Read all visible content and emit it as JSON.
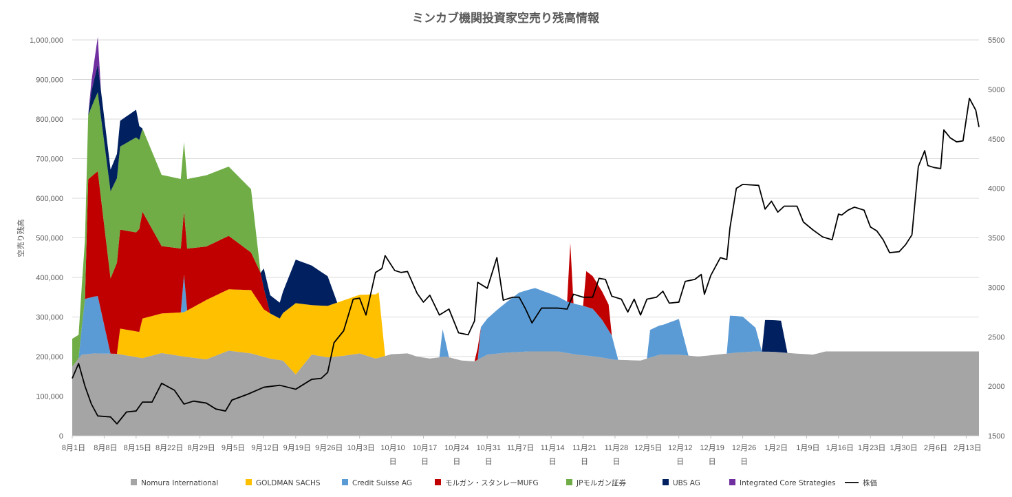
{
  "chart_data": {
    "type": "area",
    "title": "ミンカブ機関投資家空売り残高情報",
    "ylabel": "空売り残高",
    "ylim": [
      0,
      1000000
    ],
    "y_ticks": [
      "0",
      "100,000",
      "200,000",
      "300,000",
      "400,000",
      "500,000",
      "600,000",
      "700,000",
      "800,000",
      "900,000",
      "1,000,000"
    ],
    "y2lim": [
      1500,
      5500
    ],
    "y2_ticks": [
      "1500",
      "2000",
      "2500",
      "3000",
      "3500",
      "4000",
      "4500",
      "5000",
      "5500"
    ],
    "x_tick_labels": [
      "8月1日",
      "8月8日",
      "8月15日",
      "8月22日",
      "8月29日",
      "9月5日",
      "9月12日",
      "9月19日",
      "9月26日",
      "10月3日",
      "10月10日",
      "10月17日",
      "10月24日",
      "10月31日",
      "11月7日",
      "11月14日",
      "11月21日",
      "11月28日",
      "12月5日",
      "12月12日",
      "12月19日",
      "12月26日",
      "1月2日",
      "1月9日",
      "1月16日",
      "1月23日",
      "1月30日",
      "2月6日",
      "2月13日"
    ],
    "grid": true,
    "stacked": true,
    "legend_position": "bottom",
    "series": [
      {
        "name": "Nomura International",
        "color": "#a5a5a5",
        "points": [
          [
            0,
            175000
          ],
          [
            3,
            205000
          ],
          [
            7,
            208000
          ],
          [
            14,
            207000
          ],
          [
            22,
            196000
          ],
          [
            28,
            209000
          ],
          [
            35,
            200000
          ],
          [
            42,
            193000
          ],
          [
            49,
            215000
          ],
          [
            56,
            208000
          ],
          [
            62,
            195000
          ],
          [
            66,
            190000
          ],
          [
            70,
            155000
          ],
          [
            75,
            205000
          ],
          [
            80,
            198000
          ],
          [
            85,
            202000
          ],
          [
            90,
            208000
          ],
          [
            95,
            195000
          ],
          [
            100,
            206000
          ],
          [
            105,
            208000
          ],
          [
            108,
            200000
          ],
          [
            112,
            195000
          ],
          [
            117,
            200000
          ],
          [
            122,
            190000
          ],
          [
            126,
            188000
          ],
          [
            130,
            205000
          ],
          [
            136,
            210000
          ],
          [
            143,
            213000
          ],
          [
            152,
            213000
          ],
          [
            158,
            205000
          ],
          [
            164,
            200000
          ],
          [
            170,
            192000
          ],
          [
            178,
            190000
          ],
          [
            184,
            205000
          ],
          [
            190,
            205000
          ],
          [
            196,
            200000
          ],
          [
            202,
            205000
          ],
          [
            208,
            210000
          ],
          [
            214,
            213000
          ],
          [
            220,
            212000
          ],
          [
            226,
            208000
          ],
          [
            232,
            205000
          ],
          [
            236,
            213000
          ],
          [
            240,
            213000
          ]
        ]
      },
      {
        "name": "GOLDMAN SACHS",
        "color": "#ffc000",
        "points": [
          [
            0,
            0
          ],
          [
            14,
            0
          ],
          [
            15,
            65000
          ],
          [
            21,
            65000
          ],
          [
            22,
            100000
          ],
          [
            28,
            100000
          ],
          [
            35,
            112000
          ],
          [
            42,
            150000
          ],
          [
            49,
            155000
          ],
          [
            56,
            160000
          ],
          [
            60,
            120000
          ],
          [
            65,
            105000
          ],
          [
            70,
            180000
          ],
          [
            75,
            125000
          ],
          [
            80,
            130000
          ],
          [
            85,
            140000
          ],
          [
            90,
            148000
          ],
          [
            96,
            165000
          ],
          [
            98,
            0
          ],
          [
            240,
            0
          ]
        ]
      },
      {
        "name": "Credit Suisse AG",
        "color": "#5b9bd5",
        "points": [
          [
            0,
            0
          ],
          [
            2,
            0
          ],
          [
            4,
            140000
          ],
          [
            8,
            145000
          ],
          [
            12,
            0
          ],
          [
            34,
            0
          ],
          [
            35,
            95000
          ],
          [
            36,
            0
          ],
          [
            115,
            0
          ],
          [
            116,
            70000
          ],
          [
            118,
            0
          ],
          [
            127,
            0
          ],
          [
            128,
            78000
          ],
          [
            133,
            110000
          ],
          [
            140,
            150000
          ],
          [
            145,
            160000
          ],
          [
            150,
            145000
          ],
          [
            155,
            130000
          ],
          [
            160,
            125000
          ],
          [
            163,
            120000
          ],
          [
            166,
            95000
          ],
          [
            169,
            60000
          ],
          [
            171,
            0
          ],
          [
            180,
            0
          ],
          [
            181,
            70000
          ],
          [
            185,
            75000
          ],
          [
            190,
            90000
          ],
          [
            193,
            0
          ],
          [
            205,
            0
          ],
          [
            206,
            95000
          ],
          [
            210,
            90000
          ],
          [
            214,
            60000
          ],
          [
            216,
            0
          ],
          [
            240,
            0
          ]
        ]
      },
      {
        "name": "モルガン・スタンレーMUFG",
        "color": "#c00000",
        "points": [
          [
            0,
            0
          ],
          [
            4,
            0
          ],
          [
            5,
            300000
          ],
          [
            8,
            315000
          ],
          [
            12,
            190000
          ],
          [
            15,
            250000
          ],
          [
            20,
            250000
          ],
          [
            22,
            270000
          ],
          [
            28,
            170000
          ],
          [
            35,
            160000
          ],
          [
            42,
            135000
          ],
          [
            49,
            135000
          ],
          [
            56,
            95000
          ],
          [
            59,
            80000
          ],
          [
            62,
            0
          ],
          [
            126,
            0
          ],
          [
            127,
            30000
          ],
          [
            128,
            0
          ],
          [
            155,
            0
          ],
          [
            156,
            150000
          ],
          [
            157,
            0
          ],
          [
            160,
            0
          ],
          [
            161,
            90000
          ],
          [
            165,
            75000
          ],
          [
            168,
            65000
          ],
          [
            169,
            0
          ],
          [
            240,
            0
          ]
        ]
      },
      {
        "name": "JPモルガン証券",
        "color": "#70ad47",
        "points": [
          [
            0,
            70000
          ],
          [
            2,
            60000
          ],
          [
            4,
            150000
          ],
          [
            8,
            200000
          ],
          [
            12,
            220000
          ],
          [
            15,
            210000
          ],
          [
            20,
            240000
          ],
          [
            22,
            210000
          ],
          [
            28,
            180000
          ],
          [
            35,
            175000
          ],
          [
            42,
            180000
          ],
          [
            49,
            175000
          ],
          [
            56,
            160000
          ],
          [
            59,
            0
          ],
          [
            240,
            0
          ]
        ]
      },
      {
        "name": "UBS AG",
        "color": "#002060",
        "points": [
          [
            0,
            0
          ],
          [
            5,
            0
          ],
          [
            6,
            40000
          ],
          [
            8,
            70000
          ],
          [
            12,
            55000
          ],
          [
            15,
            65000
          ],
          [
            20,
            70000
          ],
          [
            22,
            0
          ],
          [
            59,
            0
          ],
          [
            60,
            50000
          ],
          [
            65,
            40000
          ],
          [
            70,
            110000
          ],
          [
            75,
            100000
          ],
          [
            80,
            75000
          ],
          [
            83,
            0
          ],
          [
            216,
            0
          ],
          [
            217,
            80000
          ],
          [
            222,
            80000
          ],
          [
            224,
            0
          ],
          [
            240,
            0
          ]
        ]
      },
      {
        "name": "Integrated Core Strategies",
        "color": "#7030a0",
        "points": [
          [
            0,
            0
          ],
          [
            5,
            0
          ],
          [
            6,
            25000
          ],
          [
            8,
            70000
          ],
          [
            9,
            0
          ],
          [
            240,
            0
          ]
        ]
      }
    ],
    "line_series": {
      "name": "株価",
      "color": "#000000",
      "axis": "secondary",
      "points": [
        [
          0,
          2080
        ],
        [
          2,
          2230
        ],
        [
          4,
          2000
        ],
        [
          6,
          1820
        ],
        [
          8,
          1700
        ],
        [
          12,
          1690
        ],
        [
          14,
          1620
        ],
        [
          17,
          1740
        ],
        [
          20,
          1750
        ],
        [
          22,
          1840
        ],
        [
          25,
          1840
        ],
        [
          28,
          2030
        ],
        [
          32,
          1960
        ],
        [
          35,
          1820
        ],
        [
          38,
          1850
        ],
        [
          42,
          1830
        ],
        [
          45,
          1770
        ],
        [
          48,
          1750
        ],
        [
          50,
          1860
        ],
        [
          55,
          1920
        ],
        [
          60,
          1990
        ],
        [
          65,
          2010
        ],
        [
          70,
          1970
        ],
        [
          75,
          2070
        ],
        [
          78,
          2080
        ],
        [
          80,
          2140
        ],
        [
          82,
          2440
        ],
        [
          85,
          2560
        ],
        [
          88,
          2880
        ],
        [
          90,
          2890
        ],
        [
          92,
          2720
        ],
        [
          95,
          3150
        ],
        [
          97,
          3190
        ],
        [
          98,
          3320
        ],
        [
          101,
          3170
        ],
        [
          103,
          3150
        ],
        [
          105,
          3160
        ],
        [
          108,
          2940
        ],
        [
          110,
          2850
        ],
        [
          112,
          2920
        ],
        [
          115,
          2720
        ],
        [
          118,
          2780
        ],
        [
          121,
          2540
        ],
        [
          124,
          2520
        ],
        [
          126,
          2660
        ],
        [
          127,
          3050
        ],
        [
          130,
          2990
        ],
        [
          133,
          3300
        ],
        [
          135,
          2870
        ],
        [
          138,
          2900
        ],
        [
          140,
          2900
        ],
        [
          142,
          2780
        ],
        [
          144,
          2640
        ],
        [
          147,
          2790
        ],
        [
          152,
          2790
        ],
        [
          155,
          2780
        ],
        [
          157,
          2930
        ],
        [
          160,
          2900
        ],
        [
          163,
          2900
        ],
        [
          165,
          3090
        ],
        [
          167,
          3080
        ],
        [
          169,
          2910
        ],
        [
          172,
          2880
        ],
        [
          174,
          2750
        ],
        [
          176,
          2880
        ],
        [
          178,
          2720
        ],
        [
          180,
          2880
        ],
        [
          183,
          2900
        ],
        [
          185,
          2960
        ],
        [
          187,
          2840
        ],
        [
          190,
          2850
        ],
        [
          192,
          3060
        ],
        [
          195,
          3080
        ],
        [
          197,
          3130
        ],
        [
          198,
          2930
        ],
        [
          200,
          3120
        ],
        [
          203,
          3300
        ],
        [
          205,
          3280
        ],
        [
          206,
          3600
        ],
        [
          208,
          4000
        ],
        [
          210,
          4040
        ],
        [
          215,
          4030
        ],
        [
          217,
          3790
        ],
        [
          219,
          3870
        ],
        [
          221,
          3760
        ],
        [
          223,
          3820
        ],
        [
          227,
          3820
        ],
        [
          229,
          3660
        ],
        [
          232,
          3580
        ],
        [
          235,
          3510
        ],
        [
          238,
          3480
        ],
        [
          240,
          3740
        ],
        [
          241,
          3730
        ],
        [
          243,
          3780
        ],
        [
          245,
          3810
        ],
        [
          248,
          3780
        ],
        [
          250,
          3610
        ],
        [
          252,
          3570
        ],
        [
          254,
          3480
        ],
        [
          256,
          3350
        ],
        [
          259,
          3360
        ],
        [
          261,
          3430
        ],
        [
          263,
          3530
        ],
        [
          265,
          4220
        ],
        [
          267,
          4380
        ],
        [
          268,
          4230
        ],
        [
          270,
          4210
        ],
        [
          272,
          4200
        ],
        [
          273,
          4590
        ],
        [
          275,
          4510
        ],
        [
          277,
          4470
        ],
        [
          279,
          4480
        ],
        [
          281,
          4910
        ],
        [
          283,
          4790
        ],
        [
          284,
          4620
        ]
      ]
    }
  }
}
